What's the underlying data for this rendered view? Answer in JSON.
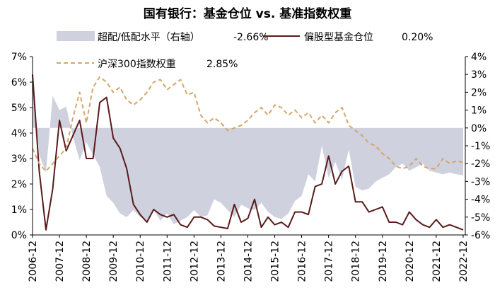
{
  "chart_data": {
    "type": "line",
    "title": "国有银行：基金仓位 vs. 基准指数权重",
    "x_ticks": [
      "2006-12",
      "2007-12",
      "2008-12",
      "2009-12",
      "2010-12",
      "2011-12",
      "2012-12",
      "2013-12",
      "2014-12",
      "2015-12",
      "2016-12",
      "2017-12",
      "2018-12",
      "2019-12",
      "2020-12",
      "2021-12",
      "2022-12"
    ],
    "y_left_ticks": [
      "0%",
      "1%",
      "2%",
      "3%",
      "4%",
      "5%",
      "6%",
      "7%"
    ],
    "y_right_ticks": [
      "4%",
      "3%",
      "2%",
      "1%",
      "0%",
      "-1%",
      "-2%",
      "-3%",
      "-4%",
      "-5%",
      "-6%"
    ],
    "y_left_range": [
      0,
      7
    ],
    "y_right_range": [
      -6,
      4
    ],
    "x_range": [
      2006.92,
      2023.0
    ],
    "grid": false,
    "legend": [
      {
        "label": "超配/低配水平（右轴）",
        "value": "-2.66%"
      },
      {
        "label": "偏股型基金仓位",
        "value": "0.20%"
      },
      {
        "label": "沪深300指数权重",
        "value": "2.85%"
      }
    ],
    "colors": {
      "overweight_area": "#cfd1de",
      "fund_position": "#5a1a1a",
      "index_weight": "#d4a66a"
    },
    "series": [
      {
        "name": "超配/低配水平（右轴）",
        "axis": "right",
        "style": "area",
        "x": [
          2006.92,
          2007.17,
          2007.42,
          2007.67,
          2007.92,
          2008.17,
          2008.42,
          2008.67,
          2008.92,
          2009.17,
          2009.42,
          2009.67,
          2009.92,
          2010.17,
          2010.42,
          2010.67,
          2010.92,
          2011.17,
          2011.42,
          2011.67,
          2011.92,
          2012.17,
          2012.42,
          2012.67,
          2012.92,
          2013.17,
          2013.42,
          2013.67,
          2013.92,
          2014.17,
          2014.42,
          2014.67,
          2014.92,
          2015.17,
          2015.42,
          2015.67,
          2015.92,
          2016.17,
          2016.42,
          2016.67,
          2016.92,
          2017.17,
          2017.42,
          2017.67,
          2017.92,
          2018.17,
          2018.42,
          2018.67,
          2018.92,
          2019.17,
          2019.42,
          2019.67,
          2019.92,
          2020.17,
          2020.42,
          2020.67,
          2020.92,
          2021.17,
          2021.42,
          2021.67,
          2021.92,
          2022.17,
          2022.42,
          2022.67,
          2022.92
        ],
        "values": [
          3.0,
          -1.5,
          -2.5,
          1.8,
          1.0,
          1.2,
          -0.5,
          -1.8,
          -0.8,
          -1.5,
          -2.2,
          -3.8,
          -4.2,
          -4.8,
          -5.0,
          -4.6,
          -5.0,
          -5.2,
          -4.6,
          -5.2,
          -4.8,
          -5.4,
          -5.2,
          -5.0,
          -4.6,
          -5.0,
          -4.9,
          -4.0,
          -4.2,
          -4.6,
          -5.0,
          -4.3,
          -4.5,
          -4.6,
          -4.2,
          -4.7,
          -5.0,
          -5.1,
          -4.8,
          -4.1,
          -3.8,
          -2.6,
          -3.0,
          -1.0,
          -2.8,
          -1.9,
          -2.9,
          -1.2,
          -3.3,
          -3.5,
          -3.4,
          -3.0,
          -2.8,
          -2.6,
          -2.2,
          -2.0,
          -2.4,
          -2.2,
          -2.0,
          -2.4,
          -2.5,
          -2.6,
          -2.5,
          -2.6,
          -2.66
        ]
      },
      {
        "name": "偏股型基金仓位",
        "axis": "left",
        "style": "solid",
        "x": [
          2006.92,
          2007.17,
          2007.42,
          2007.67,
          2007.92,
          2008.17,
          2008.42,
          2008.67,
          2008.92,
          2009.17,
          2009.42,
          2009.67,
          2009.92,
          2010.17,
          2010.42,
          2010.67,
          2010.92,
          2011.17,
          2011.42,
          2011.67,
          2011.92,
          2012.17,
          2012.42,
          2012.67,
          2012.92,
          2013.17,
          2013.42,
          2013.67,
          2013.92,
          2014.17,
          2014.42,
          2014.67,
          2014.92,
          2015.17,
          2015.42,
          2015.67,
          2015.92,
          2016.17,
          2016.42,
          2016.67,
          2016.92,
          2017.17,
          2017.42,
          2017.67,
          2017.92,
          2018.17,
          2018.42,
          2018.67,
          2018.92,
          2019.17,
          2019.42,
          2019.67,
          2019.92,
          2020.17,
          2020.42,
          2020.67,
          2020.92,
          2021.17,
          2021.42,
          2021.67,
          2021.92,
          2022.17,
          2022.42,
          2022.67,
          2022.92
        ],
        "values": [
          6.3,
          2.5,
          0.2,
          1.8,
          4.5,
          3.3,
          3.9,
          4.5,
          3.0,
          3.0,
          5.2,
          5.4,
          3.8,
          3.4,
          2.6,
          1.2,
          0.8,
          0.5,
          1.0,
          0.8,
          0.7,
          0.8,
          0.4,
          0.3,
          0.7,
          0.7,
          0.6,
          0.35,
          0.3,
          0.25,
          1.2,
          0.5,
          0.65,
          1.4,
          0.3,
          0.7,
          0.4,
          0.5,
          0.3,
          0.9,
          0.9,
          0.8,
          1.9,
          2.0,
          3.1,
          2.0,
          2.5,
          2.7,
          1.3,
          1.3,
          0.9,
          1.0,
          1.1,
          0.5,
          0.5,
          0.4,
          0.9,
          0.6,
          0.4,
          0.3,
          0.6,
          0.3,
          0.4,
          0.3,
          0.2
        ]
      },
      {
        "name": "沪深300指数权重",
        "axis": "left",
        "style": "dashed",
        "x": [
          2006.92,
          2007.17,
          2007.42,
          2007.67,
          2007.92,
          2008.17,
          2008.42,
          2008.67,
          2008.92,
          2009.17,
          2009.42,
          2009.67,
          2009.92,
          2010.17,
          2010.42,
          2010.67,
          2010.92,
          2011.17,
          2011.42,
          2011.67,
          2011.92,
          2012.17,
          2012.42,
          2012.67,
          2012.92,
          2013.17,
          2013.42,
          2013.67,
          2013.92,
          2014.17,
          2014.42,
          2014.67,
          2014.92,
          2015.17,
          2015.42,
          2015.67,
          2015.92,
          2016.17,
          2016.42,
          2016.67,
          2016.92,
          2017.17,
          2017.42,
          2017.67,
          2017.92,
          2018.17,
          2018.42,
          2018.67,
          2018.92,
          2019.17,
          2019.42,
          2019.67,
          2019.92,
          2020.17,
          2020.42,
          2020.67,
          2020.92,
          2021.17,
          2021.42,
          2021.67,
          2021.92,
          2022.17,
          2022.42,
          2022.67,
          2022.92
        ],
        "values": [
          3.4,
          2.8,
          2.5,
          2.8,
          3.1,
          3.4,
          4.6,
          5.6,
          4.4,
          5.8,
          6.2,
          6.0,
          5.6,
          5.8,
          5.3,
          5.1,
          5.3,
          5.6,
          6.0,
          6.1,
          5.7,
          5.9,
          6.1,
          5.5,
          5.6,
          4.7,
          4.4,
          4.6,
          4.4,
          4.1,
          4.2,
          4.3,
          4.5,
          4.8,
          5.0,
          4.7,
          5.1,
          5.0,
          4.7,
          4.9,
          4.6,
          4.8,
          4.4,
          4.7,
          4.4,
          4.8,
          5.0,
          4.3,
          4.1,
          3.9,
          3.6,
          3.5,
          3.2,
          3.0,
          2.7,
          2.6,
          2.7,
          3.0,
          2.7,
          2.6,
          2.6,
          3.0,
          2.8,
          2.9,
          2.85
        ]
      }
    ]
  }
}
